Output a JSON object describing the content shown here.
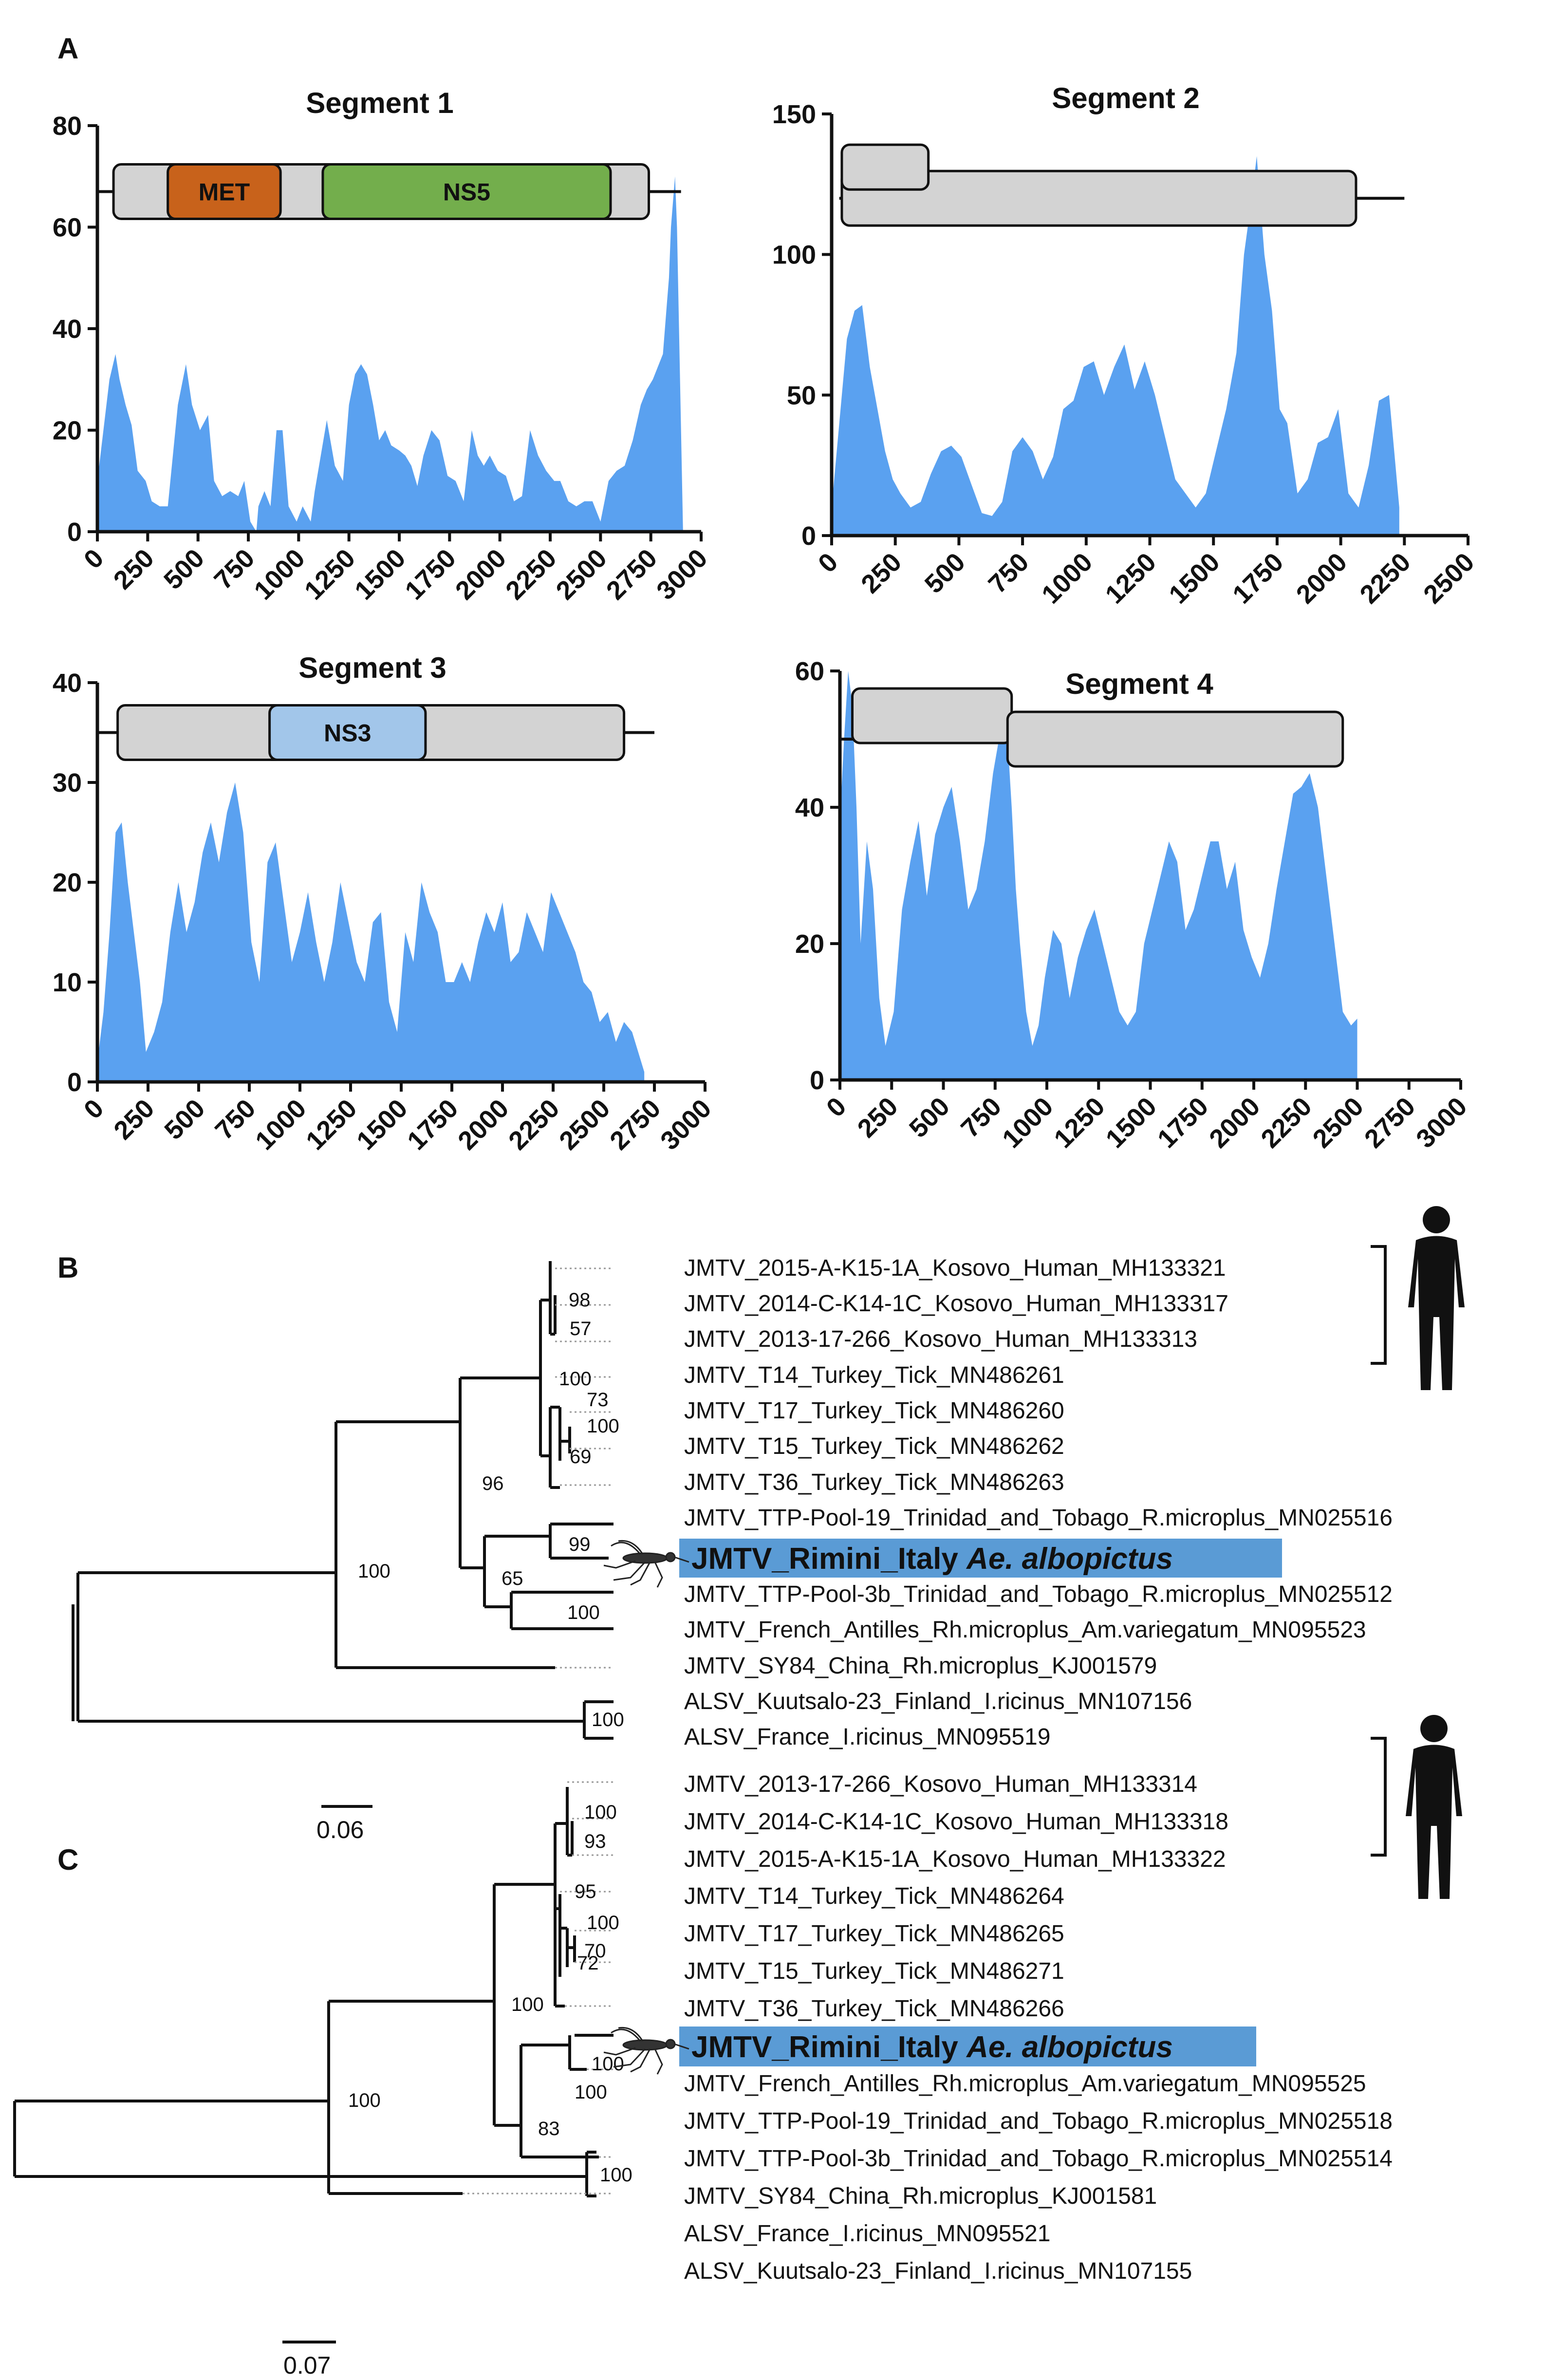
{
  "panel_labels": {
    "a": "A",
    "b": "B",
    "c": "C"
  },
  "chart_data": [
    {
      "type": "area",
      "title": "Segment 1",
      "xlim": [
        0,
        3000
      ],
      "ylim": [
        0,
        80
      ],
      "xticks": [
        "0",
        "250",
        "500",
        "750",
        "1000",
        "1250",
        "1500",
        "1750",
        "2000",
        "2250",
        "2500",
        "2750",
        "3000"
      ],
      "yticks": [
        "0",
        "20",
        "40",
        "60",
        "80"
      ],
      "color": "#5aa1f0",
      "x": [
        0,
        30,
        60,
        90,
        110,
        140,
        170,
        200,
        240,
        270,
        310,
        350,
        400,
        440,
        470,
        510,
        550,
        580,
        620,
        660,
        700,
        730,
        760,
        790,
        800,
        830,
        860,
        890,
        920,
        950,
        990,
        1020,
        1060,
        1080,
        1110,
        1140,
        1180,
        1220,
        1250,
        1280,
        1310,
        1340,
        1370,
        1400,
        1430,
        1460,
        1500,
        1530,
        1560,
        1590,
        1620,
        1660,
        1700,
        1740,
        1780,
        1820,
        1860,
        1890,
        1920,
        1950,
        1990,
        2030,
        2070,
        2110,
        2150,
        2190,
        2230,
        2270,
        2300,
        2340,
        2380,
        2420,
        2460,
        2500,
        2540,
        2580,
        2620,
        2660,
        2700,
        2730,
        2760,
        2790,
        2810,
        2830,
        2840,
        2850,
        2870,
        2880,
        2900,
        2910
      ],
      "y": [
        10,
        20,
        30,
        35,
        30,
        25,
        21,
        12,
        10,
        6,
        5,
        5,
        25,
        33,
        25,
        20,
        23,
        10,
        7,
        8,
        7,
        10,
        2,
        0,
        5,
        8,
        5,
        20,
        20,
        5,
        2,
        5,
        2,
        8,
        15,
        22,
        13,
        10,
        25,
        31,
        33,
        31,
        25,
        18,
        20,
        17,
        16,
        15,
        13,
        9,
        15,
        20,
        18,
        11,
        10,
        6,
        20,
        15,
        13,
        15,
        12,
        11,
        6,
        7,
        20,
        15,
        12,
        10,
        10,
        6,
        5,
        6,
        6,
        2,
        10,
        12,
        13,
        18,
        25,
        28,
        30,
        33,
        35,
        45,
        50,
        60,
        70,
        60,
        20,
        0
      ],
      "boxes": [
        {
          "type": "backbone",
          "x0": 0,
          "x1": 2900,
          "level": 67
        },
        {
          "type": "gene",
          "label": "",
          "x0": 80,
          "x1": 2740,
          "color": "#d3d3d3"
        },
        {
          "type": "gene",
          "label": "MET",
          "x0": 350,
          "x1": 910,
          "color": "#c8621b"
        },
        {
          "type": "gene",
          "label": "NS5",
          "x0": 1120,
          "x1": 2550,
          "color": "#73ae4c"
        }
      ]
    },
    {
      "type": "area",
      "title": "Segment 2",
      "xlim": [
        0,
        2500
      ],
      "ylim": [
        0,
        150
      ],
      "xticks": [
        "0",
        "250",
        "500",
        "750",
        "1000",
        "1250",
        "1500",
        "1750",
        "2000",
        "2250",
        "2500"
      ],
      "yticks": [
        "0",
        "50",
        "100",
        "150"
      ],
      "color": "#5aa1f0",
      "x": [
        0,
        30,
        60,
        90,
        120,
        150,
        180,
        210,
        240,
        270,
        310,
        350,
        390,
        430,
        470,
        510,
        550,
        590,
        630,
        670,
        710,
        750,
        790,
        830,
        870,
        910,
        950,
        990,
        1030,
        1070,
        1110,
        1150,
        1190,
        1230,
        1270,
        1310,
        1350,
        1390,
        1430,
        1470,
        1510,
        1550,
        1590,
        1620,
        1650,
        1670,
        1700,
        1730,
        1760,
        1790,
        1830,
        1870,
        1910,
        1950,
        1990,
        2030,
        2070,
        2110,
        2150,
        2190,
        2210,
        2230
      ],
      "y": [
        10,
        40,
        70,
        80,
        82,
        60,
        45,
        30,
        20,
        15,
        10,
        12,
        22,
        30,
        32,
        28,
        18,
        8,
        7,
        12,
        30,
        35,
        30,
        20,
        28,
        45,
        48,
        60,
        62,
        50,
        60,
        68,
        52,
        62,
        50,
        35,
        20,
        15,
        10,
        15,
        30,
        45,
        65,
        100,
        120,
        135,
        100,
        80,
        45,
        40,
        15,
        20,
        33,
        35,
        45,
        15,
        10,
        25,
        48,
        50,
        30,
        10
      ],
      "boxes": [
        {
          "type": "backbone",
          "x0": 30,
          "x1": 2250,
          "level": 120
        },
        {
          "type": "gene",
          "label": "",
          "x0": 40,
          "x1": 2060,
          "color": "#d3d3d3"
        },
        {
          "type": "gene",
          "label": "",
          "x0": 40,
          "x1": 380,
          "color": "#d3d3d3",
          "upper": true
        }
      ]
    },
    {
      "type": "area",
      "title": "Segment 3",
      "xlim": [
        0,
        3000
      ],
      "ylim": [
        0,
        40
      ],
      "xticks": [
        "0",
        "250",
        "500",
        "750",
        "1000",
        "1250",
        "1500",
        "1750",
        "2000",
        "2250",
        "2500",
        "2750",
        "3000"
      ],
      "yticks": [
        "0",
        "10",
        "20",
        "30",
        "40"
      ],
      "color": "#5aa1f0",
      "x": [
        0,
        30,
        60,
        90,
        120,
        150,
        180,
        210,
        240,
        280,
        320,
        360,
        400,
        440,
        480,
        520,
        560,
        600,
        640,
        680,
        720,
        760,
        800,
        840,
        880,
        920,
        960,
        1000,
        1040,
        1080,
        1120,
        1160,
        1200,
        1240,
        1280,
        1320,
        1360,
        1400,
        1440,
        1480,
        1520,
        1560,
        1600,
        1640,
        1680,
        1720,
        1760,
        1800,
        1840,
        1880,
        1920,
        1960,
        2000,
        2040,
        2080,
        2120,
        2160,
        2200,
        2240,
        2280,
        2320,
        2360,
        2400,
        2440,
        2480,
        2520,
        2560,
        2600,
        2640,
        2670,
        2700
      ],
      "y": [
        2,
        7,
        15,
        25,
        26,
        20,
        15,
        10,
        3,
        5,
        8,
        15,
        20,
        15,
        18,
        23,
        26,
        22,
        27,
        30,
        25,
        14,
        10,
        22,
        24,
        18,
        12,
        15,
        19,
        14,
        10,
        14,
        20,
        16,
        12,
        10,
        16,
        17,
        8,
        5,
        15,
        12,
        20,
        17,
        15,
        10,
        10,
        12,
        10,
        14,
        17,
        15,
        18,
        12,
        13,
        17,
        15,
        13,
        19,
        17,
        15,
        13,
        10,
        9,
        6,
        7,
        4,
        6,
        5,
        3,
        1
      ],
      "boxes": [
        {
          "type": "backbone",
          "x0": 0,
          "x1": 2750,
          "level": 35
        },
        {
          "type": "gene",
          "label": "",
          "x0": 100,
          "x1": 2600,
          "color": "#d3d3d3"
        },
        {
          "type": "gene",
          "label": "NS3",
          "x0": 850,
          "x1": 1620,
          "color": "#a2c6ea"
        }
      ]
    },
    {
      "type": "area",
      "title": "Segment 4",
      "xlim": [
        0,
        3000
      ],
      "ylim": [
        0,
        60
      ],
      "xticks": [
        "0",
        "250",
        "500",
        "750",
        "1000",
        "1250",
        "1500",
        "1750",
        "2000",
        "2250",
        "2500",
        "2750",
        "3000"
      ],
      "yticks": [
        "0",
        "20",
        "40",
        "60"
      ],
      "color": "#5aa1f0",
      "x": [
        0,
        20,
        40,
        60,
        80,
        100,
        130,
        160,
        190,
        220,
        260,
        300,
        340,
        380,
        420,
        460,
        500,
        540,
        580,
        620,
        660,
        700,
        740,
        780,
        810,
        830,
        850,
        870,
        900,
        930,
        960,
        990,
        1030,
        1070,
        1110,
        1150,
        1190,
        1230,
        1270,
        1310,
        1350,
        1390,
        1430,
        1470,
        1510,
        1550,
        1590,
        1630,
        1670,
        1710,
        1750,
        1790,
        1830,
        1870,
        1910,
        1950,
        1990,
        2030,
        2070,
        2110,
        2150,
        2190,
        2230,
        2270,
        2310,
        2350,
        2390,
        2430,
        2470,
        2500
      ],
      "y": [
        38,
        50,
        60,
        55,
        40,
        20,
        35,
        28,
        12,
        5,
        10,
        25,
        32,
        38,
        27,
        36,
        40,
        43,
        35,
        25,
        28,
        35,
        45,
        52,
        50,
        40,
        28,
        20,
        10,
        5,
        8,
        15,
        22,
        20,
        12,
        18,
        22,
        25,
        20,
        15,
        10,
        8,
        10,
        20,
        25,
        30,
        35,
        32,
        22,
        25,
        30,
        35,
        35,
        28,
        32,
        22,
        18,
        15,
        20,
        28,
        35,
        42,
        43,
        45,
        40,
        30,
        20,
        10,
        8,
        9
      ],
      "boxes": [
        {
          "type": "backbone",
          "x0": 0,
          "x1": 900,
          "level": 50
        },
        {
          "type": "gene",
          "label": "",
          "x0": 60,
          "x1": 830,
          "color": "#d3d3d3",
          "upper": true
        },
        {
          "type": "gene",
          "label": "",
          "x0": 810,
          "x1": 2430,
          "color": "#d3d3d3"
        }
      ]
    }
  ],
  "tree_b": {
    "scale_label": "0.06",
    "taxa": [
      "JMTV_2015-A-K15-1A_Kosovo_Human_MH133321",
      "JMTV_2014-C-K14-1C_Kosovo_Human_MH133317",
      "JMTV_2013-17-266_Kosovo_Human_MH133313",
      "JMTV_T14_Turkey_Tick_MN486261",
      "JMTV_T17_Turkey_Tick_MN486260",
      "JMTV_T15_Turkey_Tick_MN486262",
      "JMTV_T36_Turkey_Tick_MN486263",
      "JMTV_TTP-Pool-19_Trinidad_and_Tobago_R.microplus_MN025516",
      "JMTV_Rimini_Italy",
      "JMTV_TTP-Pool-3b_Trinidad_and_Tobago_R.microplus_MN025512",
      "JMTV_French_Antilles_Rh.microplus_Am.variegatum_MN095523",
      "JMTV_SY84_China_Rh.microplus_KJ001579",
      "ALSV_Kuutsalo-23_Finland_I.ricinus_MN107156",
      "ALSV_France_I.ricinus_MN095519"
    ],
    "highlight_species": "Ae. albopictus",
    "bootstrap": [
      "98",
      "57",
      "100",
      "73",
      "100",
      "69",
      "96",
      "99",
      "100",
      "65",
      "100",
      "100"
    ]
  },
  "tree_c": {
    "scale_label": "0.07",
    "taxa": [
      "JMTV_2013-17-266_Kosovo_Human_MH133314",
      "JMTV_2014-C-K14-1C_Kosovo_Human_MH133318",
      "JMTV_2015-A-K15-1A_Kosovo_Human_MH133322",
      "JMTV_T14_Turkey_Tick_MN486264",
      "JMTV_T17_Turkey_Tick_MN486265",
      "JMTV_T15_Turkey_Tick_MN486271",
      "JMTV_T36_Turkey_Tick_MN486266",
      "JMTV_Rimini_Italy",
      "JMTV_French_Antilles_Rh.microplus_Am.variegatum_MN095525",
      "JMTV_TTP-Pool-19_Trinidad_and_Tobago_R.microplus_MN025518",
      "JMTV_TTP-Pool-3b_Trinidad_and_Tobago_R.microplus_MN025514",
      "JMTV_SY84_China_Rh.microplus_KJ001581",
      "ALSV_France_I.ricinus_MN095521",
      "ALSV_Kuutsalo-23_Finland_I.ricinus_MN107155"
    ],
    "highlight_species": "Ae. albopictus",
    "bootstrap": [
      "100",
      "93",
      "95",
      "100",
      "70",
      "72",
      "100",
      "100",
      "100",
      "83",
      "100",
      "100"
    ]
  },
  "colors": {
    "highlight": "#5a9bd5",
    "area": "#5aa1f0",
    "gene_gray": "#d3d3d3"
  }
}
